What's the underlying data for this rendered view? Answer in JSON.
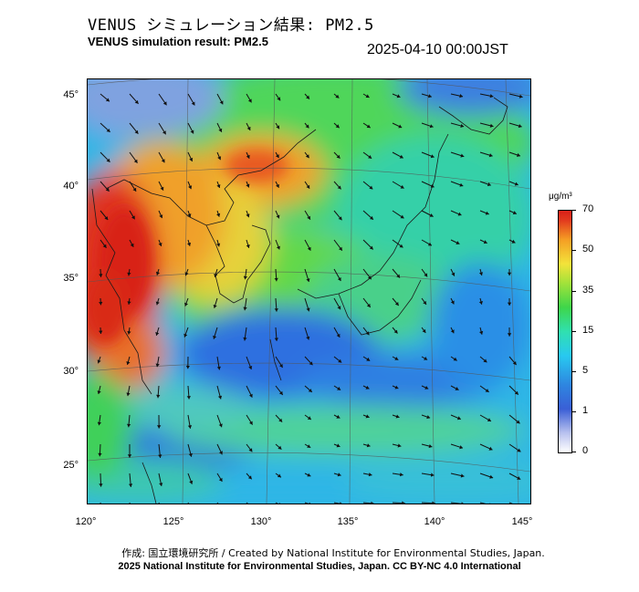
{
  "header": {
    "title_jp": "VENUS シミュレーション結果: PM2.5",
    "title_en": "VENUS simulation result: PM2.5",
    "datetime": "2025-04-10 00:00JST"
  },
  "map": {
    "latitude_labels": [
      "45°",
      "40°",
      "35°",
      "30°",
      "25°"
    ],
    "longitude_labels": [
      "120°",
      "125°",
      "130°",
      "135°",
      "140°",
      "145°"
    ],
    "wind_arrow_icon": "wind-vector-arrow-icon"
  },
  "colorbar": {
    "unit": "μg/m³",
    "labels": [
      "70",
      "50",
      "35",
      "15",
      "5",
      "1",
      "0"
    ],
    "colors": [
      "#ffffff",
      "#3a5fd6",
      "#28c9f0",
      "#3ed64a",
      "#f3e33a",
      "#f59e24",
      "#d82018"
    ]
  },
  "footer": {
    "credit_jp": "作成: 国立環境研究所 / Created by National Institute for Environmental Studies, Japan.",
    "copyright": "2025 National Institute for Environmental Studies, Japan. CC BY-NC 4.0 International"
  }
}
